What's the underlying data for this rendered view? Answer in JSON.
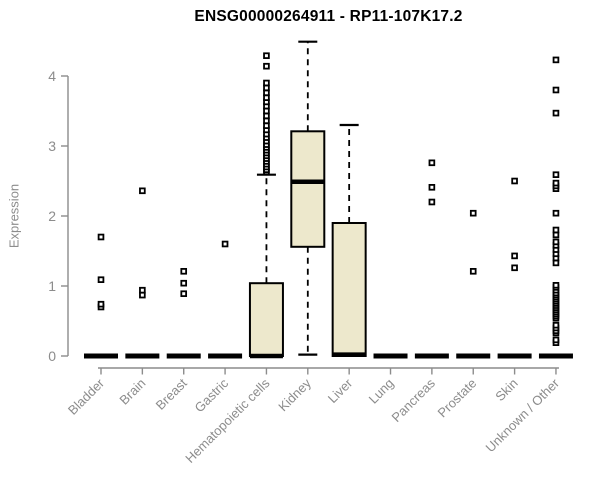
{
  "chart_data": {
    "type": "boxplot",
    "title": "ENSG00000264911 - RP11-107K17.2",
    "ylabel": "Expression",
    "xlabel": "",
    "ylim": [
      0,
      4.55
    ],
    "yticks": [
      0,
      1,
      2,
      3,
      4
    ],
    "grid": false,
    "legend": "none",
    "categories": [
      "Bladder",
      "Brain",
      "Breast",
      "Gastric",
      "Hematopoietic cells",
      "Kidney",
      "Liver",
      "Lung",
      "Pancreas",
      "Prostate",
      "Skin",
      "Unknown / Other"
    ],
    "boxes": [
      {
        "category": "Bladder",
        "q1": 0,
        "median": 0,
        "q3": 0,
        "whisker_low": 0,
        "whisker_high": 0,
        "outliers": [
          0.7,
          0.74,
          1.09,
          1.7
        ]
      },
      {
        "category": "Brain",
        "q1": 0,
        "median": 0,
        "q3": 0,
        "whisker_low": 0,
        "whisker_high": 0,
        "outliers": [
          0.87,
          0.94,
          2.36
        ]
      },
      {
        "category": "Breast",
        "q1": 0,
        "median": 0,
        "q3": 0,
        "whisker_low": 0,
        "whisker_high": 0,
        "outliers": [
          0.89,
          1.04,
          1.21
        ]
      },
      {
        "category": "Gastric",
        "q1": 0,
        "median": 0,
        "q3": 0,
        "whisker_low": 0,
        "whisker_high": 0,
        "outliers": [
          1.6
        ]
      },
      {
        "category": "Hematopoietic cells",
        "q1": 0,
        "median": 0,
        "q3": 1.04,
        "whisker_low": 0,
        "whisker_high": 2.59,
        "outliers": [
          2.63,
          2.66,
          2.7,
          2.74,
          2.78,
          2.82,
          2.86,
          2.9,
          2.94,
          2.98,
          3.02,
          3.07,
          3.12,
          3.17,
          3.23,
          3.29,
          3.36,
          3.43,
          3.5,
          3.57,
          3.63,
          3.69,
          3.76,
          3.83,
          3.9,
          4.14,
          4.29
        ]
      },
      {
        "category": "Kidney",
        "q1": 1.56,
        "median": 2.49,
        "q3": 3.21,
        "whisker_low": 0.02,
        "whisker_high": 4.49,
        "outliers": []
      },
      {
        "category": "Liver",
        "q1": 0,
        "median": 0.02,
        "q3": 1.9,
        "whisker_low": 0,
        "whisker_high": 3.3,
        "outliers": []
      },
      {
        "category": "Lung",
        "q1": 0,
        "median": 0,
        "q3": 0,
        "whisker_low": 0,
        "whisker_high": 0,
        "outliers": []
      },
      {
        "category": "Pancreas",
        "q1": 0,
        "median": 0,
        "q3": 0,
        "whisker_low": 0,
        "whisker_high": 0,
        "outliers": [
          2.2,
          2.41,
          2.76
        ]
      },
      {
        "category": "Prostate",
        "q1": 0,
        "median": 0,
        "q3": 0,
        "whisker_low": 0,
        "whisker_high": 0,
        "outliers": [
          1.21,
          2.04
        ]
      },
      {
        "category": "Skin",
        "q1": 0,
        "median": 0,
        "q3": 0,
        "whisker_low": 0,
        "whisker_high": 0,
        "outliers": [
          1.26,
          1.43,
          2.5
        ]
      },
      {
        "category": "Unknown / Other",
        "q1": 0,
        "median": 0,
        "q3": 0,
        "whisker_low": 0,
        "whisker_high": 0,
        "outliers": [
          0.19,
          0.23,
          0.33,
          0.36,
          0.4,
          0.44,
          0.54,
          0.57,
          0.6,
          0.63,
          0.66,
          0.69,
          0.72,
          0.75,
          0.78,
          0.81,
          0.84,
          0.87,
          0.9,
          0.94,
          0.98,
          1.01,
          1.33,
          1.4,
          1.46,
          1.52,
          1.58,
          1.63,
          1.73,
          1.8,
          2.04,
          2.39,
          2.43,
          2.47,
          2.59,
          3.47,
          3.8,
          4.23
        ]
      }
    ],
    "colors": {
      "box_fill": "#ede8cc",
      "box_stroke": "#000000",
      "median": "#000000",
      "whisker": "#000000",
      "outlier": "#000000",
      "axis": "#8c8c8c",
      "tick_label": "#8c8c8c",
      "title": "#000000",
      "background": "#ffffff"
    }
  }
}
